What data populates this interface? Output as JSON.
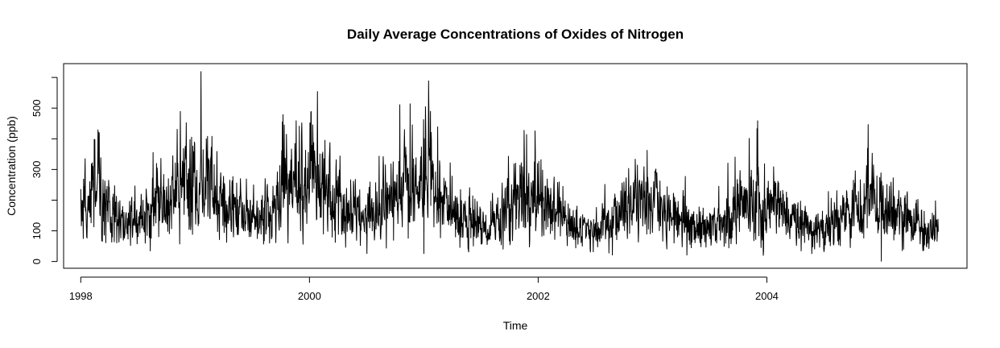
{
  "chart_data": {
    "type": "line",
    "title": "Daily  Average Concentrations of Oxides of Nitrogen",
    "xlabel": "Time",
    "ylabel": "Concentration (ppb)",
    "xlim": [
      1997.85,
      2005.75
    ],
    "ylim": [
      -22,
      645
    ],
    "x_ticks": [
      1998,
      2000,
      2002,
      2004
    ],
    "x_tick_labels": [
      "1998",
      "2000",
      "2002",
      "2004"
    ],
    "y_ticks": [
      0,
      100,
      300,
      500
    ],
    "y_tick_labels": [
      "0",
      "100",
      "300",
      "500"
    ],
    "grid": false,
    "legend": "none",
    "x_start": 1998.0,
    "x_end": 2005.5,
    "frequency": "daily",
    "series": [
      {
        "approx_monthly_mean": [
          175,
          190,
          225,
          185,
          140,
          120,
          125,
          150,
          175,
          180,
          200,
          265,
          270,
          255,
          220,
          180,
          160,
          140,
          135,
          150,
          175,
          210,
          250,
          265,
          270,
          280,
          240,
          195,
          160,
          140,
          135,
          150,
          180,
          220,
          255,
          270,
          250,
          225,
          195,
          160,
          135,
          120,
          110,
          115,
          140,
          180,
          200,
          210,
          190,
          175,
          150,
          125,
          110,
          100,
          100,
          115,
          140,
          170,
          185,
          190,
          185,
          175,
          150,
          130,
          110,
          100,
          100,
          115,
          145,
          175,
          190,
          195,
          185,
          170,
          150,
          125,
          110,
          100,
          100,
          115,
          140,
          170,
          185,
          190,
          170,
          160,
          150,
          130,
          115,
          105,
          105,
          120,
          150,
          175,
          190,
          195
        ],
        "notable_peaks": [
          {
            "x": 1999.05,
            "y": 620
          },
          {
            "x": 2000.07,
            "y": 555
          },
          {
            "x": 2000.88,
            "y": 515
          },
          {
            "x": 1998.87,
            "y": 490
          },
          {
            "x": 2003.92,
            "y": 460
          },
          {
            "x": 1999.77,
            "y": 480
          },
          {
            "x": 2001.12,
            "y": 440
          },
          {
            "x": 1998.15,
            "y": 430
          },
          {
            "x": 2001.9,
            "y": 415
          },
          {
            "x": 2004.88,
            "y": 370
          }
        ],
        "notable_troughs": [
          {
            "x": 2005.0,
            "y": 0
          },
          {
            "x": 2002.65,
            "y": 20
          },
          {
            "x": 2003.3,
            "y": 20
          },
          {
            "x": 2001.0,
            "y": 25
          }
        ]
      }
    ]
  }
}
